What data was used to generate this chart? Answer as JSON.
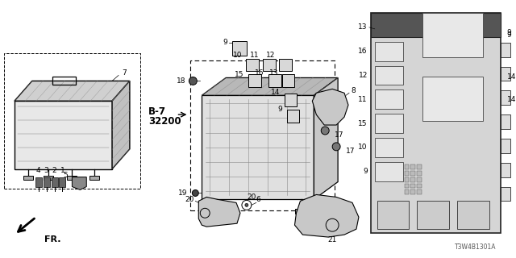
{
  "bg_color": "#ffffff",
  "diagram_code": "T3W4B1301A",
  "lc": "#000000",
  "gray": "#888888",
  "lgray": "#cccccc",
  "fs": 6.5,
  "fs_bold": 8.5
}
